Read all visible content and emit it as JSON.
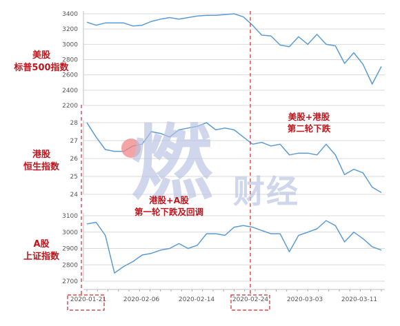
{
  "chart_data": [
    {
      "type": "line",
      "title": "美股\n标普500指数",
      "x": [
        "2020-01-21",
        "2020-01-23",
        "2020-01-25",
        "2020-01-27",
        "2020-01-29",
        "2020-01-31",
        "2020-02-02",
        "2020-02-04",
        "2020-02-06",
        "2020-02-08",
        "2020-02-10",
        "2020-02-12",
        "2020-02-14",
        "2020-02-16",
        "2020-02-18",
        "2020-02-20",
        "2020-02-22",
        "2020-02-24",
        "2020-02-26",
        "2020-02-28",
        "2020-03-01",
        "2020-03-03",
        "2020-03-05",
        "2020-03-07",
        "2020-03-09",
        "2020-03-11",
        "2020-03-13",
        "2020-03-15",
        "2020-03-17",
        "2020-03-19"
      ],
      "values": [
        3290,
        3250,
        3280,
        3280,
        3280,
        3240,
        3250,
        3300,
        3330,
        3350,
        3330,
        3350,
        3370,
        3380,
        3380,
        3390,
        3400,
        3360,
        3250,
        3120,
        3110,
        2990,
        2970,
        3100,
        3000,
        3130,
        3000,
        2980,
        2750,
        2890
      ],
      "extra_values": [
        2740,
        2480,
        2710
      ],
      "ylim": [
        2200,
        3400
      ],
      "yticks": [
        "3400",
        "3200",
        "3000",
        "2800",
        "2600",
        "2400",
        "2200"
      ]
    },
    {
      "type": "line",
      "title": "港股\n恒生指数",
      "values": [
        28.0,
        27.2,
        26.5,
        26.4,
        26.4,
        26.7,
        26.8,
        27.5,
        27.4,
        27.2,
        27.6,
        27.7,
        27.8,
        28.0,
        27.6,
        27.7,
        27.6,
        27.2,
        26.8,
        26.9,
        26.7,
        26.8,
        26.2,
        26.3,
        26.3,
        26.2,
        26.8,
        26.2,
        25.1,
        25.4,
        25.2,
        24.4,
        24.1
      ],
      "ylim": [
        24,
        28
      ],
      "yticks": [
        "28",
        "27",
        "26",
        "25",
        "24"
      ]
    },
    {
      "type": "line",
      "title": "A股\n上证指数",
      "values": [
        3050,
        3060,
        2980,
        2750,
        2790,
        2820,
        2860,
        2870,
        2890,
        2900,
        2930,
        2900,
        2920,
        2990,
        2990,
        2980,
        3030,
        3040,
        3030,
        3010,
        2990,
        2990,
        2880,
        2980,
        3000,
        3020,
        3070,
        3040,
        2940,
        3000,
        2960,
        2910,
        2890
      ],
      "ylim": [
        2700,
        3100
      ],
      "yticks": [
        "3100",
        "3000",
        "2900",
        "2800",
        "2700"
      ]
    }
  ],
  "x_tick_labels": [
    "2020-01-21",
    "2020-02-06",
    "2020-02-14",
    "2020-02-24",
    "2020-03-03",
    "2020-03-11"
  ],
  "annotations": {
    "phase2": "美股+港股\n第二轮下跌",
    "phase1": "港股+A股\n第一轮下跌及回调"
  },
  "watermark": {
    "big_char": "燃",
    "small_text": "财经"
  },
  "colors": {
    "line": "#5b9bd5",
    "marker": "#d9232a",
    "title": "#c0151c",
    "watermark": "#b8c3e2"
  }
}
